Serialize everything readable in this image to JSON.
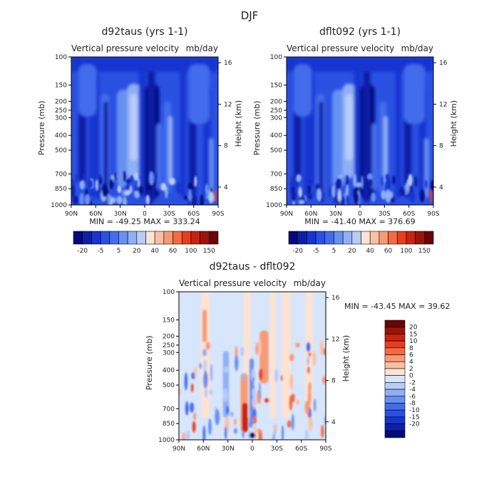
{
  "title": "DJF",
  "colors": {
    "blue_palette": [
      "#040a7c",
      "#0d1fa6",
      "#1534d0",
      "#2a50e2",
      "#436cec",
      "#6690f2",
      "#8fb0f5",
      "#b8ccf8",
      "#ffffff",
      "#fde3d3",
      "#fbbfa3",
      "#f89a73",
      "#f26b45",
      "#ea3d1c",
      "#c8230f",
      "#9b1408",
      "#6a0404"
    ],
    "diff_palette": [
      "#040a7c",
      "#0d1fa6",
      "#1534d0",
      "#2a50e2",
      "#436cec",
      "#6690f2",
      "#8fb0f5",
      "#b8ccf8",
      "#d8e6fb",
      "#fde3d3",
      "#fbbfa3",
      "#f89a73",
      "#f26b45",
      "#ea3d1c",
      "#c8230f",
      "#9b1408",
      "#6a0404"
    ]
  },
  "chart_data": [
    {
      "type": "heatmap",
      "title": "d92taus (yrs 1-1)",
      "subtitle_left": "Vertical pressure velocity",
      "subtitle_right": "mb/day",
      "ylabel": "Pressure (mb)",
      "ylabel_right": "Height (km)",
      "x_ticks": [
        "90N",
        "60N",
        "30N",
        "0",
        "30S",
        "60S",
        "90S"
      ],
      "y_ticks": [
        "100",
        "150",
        "200",
        "250",
        "300",
        "400",
        "500",
        "700",
        "850",
        "1000"
      ],
      "y_ticks_right": [
        "16",
        "12",
        "8",
        "4"
      ],
      "min_max_text": "MIN = -49.25   MAX = 333.24",
      "colorbar_labels": [
        "-20",
        "-5",
        "5",
        "20",
        "40",
        "60",
        "100",
        "150"
      ],
      "palette": "blue_palette"
    },
    {
      "type": "heatmap",
      "title": "dflt092 (yrs 1-1)",
      "subtitle_left": "Vertical pressure velocity",
      "subtitle_right": "mb/day",
      "ylabel": "Pressure (mb)",
      "ylabel_right": "Height (km)",
      "x_ticks": [
        "90N",
        "60N",
        "30N",
        "0",
        "30S",
        "60S",
        "90S"
      ],
      "y_ticks": [
        "100",
        "150",
        "200",
        "250",
        "300",
        "400",
        "500",
        "700",
        "850",
        "1000"
      ],
      "y_ticks_right": [
        "16",
        "12",
        "8",
        "4"
      ],
      "min_max_text": "MIN = -41.40   MAX = 376.69",
      "colorbar_labels": [
        "-20",
        "-5",
        "5",
        "20",
        "40",
        "60",
        "100",
        "150"
      ],
      "palette": "blue_palette"
    },
    {
      "type": "heatmap",
      "title": "d92taus - dflt092",
      "subtitle_left": "Vertical pressure velocity",
      "subtitle_right": "mb/day",
      "ylabel": "Pressure (mb)",
      "ylabel_right": "Height (km)",
      "x_ticks": [
        "90N",
        "60N",
        "30N",
        "0",
        "30S",
        "60S",
        "90S"
      ],
      "y_ticks": [
        "100",
        "150",
        "200",
        "250",
        "300",
        "400",
        "500",
        "700",
        "850",
        "1000"
      ],
      "y_ticks_right": [
        "16",
        "12",
        "8",
        "4"
      ],
      "min_max_text": "MIN = -43.45   MAX =  39.62",
      "colorbar_labels": [
        "20",
        "15",
        "10",
        "8",
        "6",
        "4",
        "2",
        "0",
        "-2",
        "-4",
        "-6",
        "-8",
        "-10",
        "-15",
        "-20"
      ],
      "palette": "diff_palette"
    }
  ]
}
